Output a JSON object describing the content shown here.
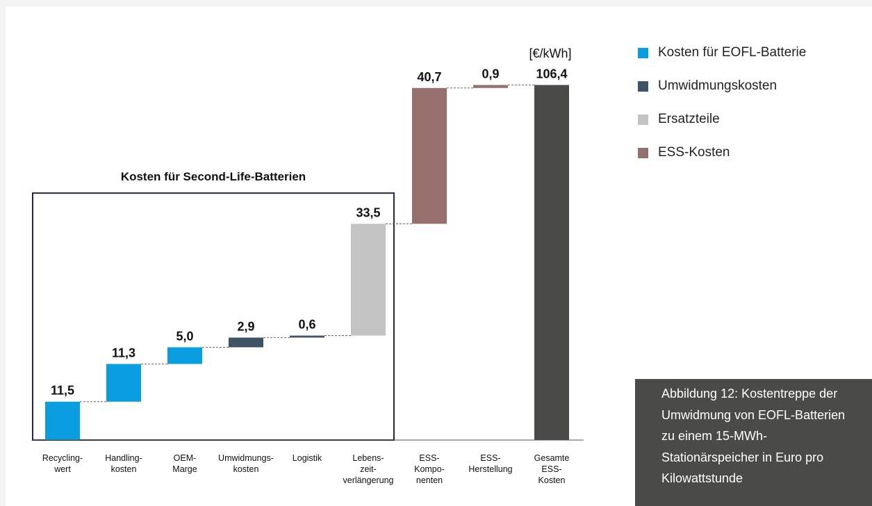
{
  "chart_data": {
    "type": "bar",
    "subtype": "waterfall",
    "unit_label": "[€/kWh]",
    "group_label": "Kosten für Second-Life-Batterien",
    "categories": [
      [
        "Recycling-",
        "wert"
      ],
      [
        "Handling-",
        "kosten"
      ],
      [
        "OEM-",
        "Marge"
      ],
      [
        "Umwidmungs-",
        "kosten"
      ],
      [
        "Logistik"
      ],
      [
        "Lebens-",
        "zeit-",
        "verlängerung"
      ],
      [
        "ESS-",
        "Kompo-",
        "nenten"
      ],
      [
        "ESS-",
        "Herstellung"
      ],
      [
        "Gesamte",
        "ESS-",
        "Kosten"
      ]
    ],
    "values": [
      11.5,
      11.3,
      5.0,
      2.9,
      0.6,
      33.5,
      40.7,
      0.9,
      106.4
    ],
    "value_labels": [
      "11,5",
      "11,3",
      "5,0",
      "2,9",
      "0,6",
      "33,5",
      "40,7",
      "0,9",
      "106,4"
    ],
    "bar_types": [
      "eofl",
      "eofl",
      "eofl",
      "umwidmung",
      "umwidmung",
      "ersatz",
      "ess",
      "ess",
      "total"
    ],
    "is_total": [
      false,
      false,
      false,
      false,
      false,
      false,
      false,
      false,
      true
    ],
    "ylim": [
      0,
      106.4
    ],
    "grid": false,
    "legend_position": "right"
  },
  "colors": {
    "eofl": "#0a9ee0",
    "umwidmung": "#3f5366",
    "ersatz": "#c3c3c3",
    "ess": "#95706c",
    "total": "#4a4a48",
    "box": "#1e2545"
  },
  "legend": [
    {
      "label": "Kosten für EOFL-Batterie",
      "color": "#0a9ee0"
    },
    {
      "label": "Umwidmungskosten",
      "color": "#3f5366"
    },
    {
      "label": "Ersatzteile",
      "color": "#c3c3c3"
    },
    {
      "label": "ESS-Kosten",
      "color": "#95706c"
    }
  ],
  "caption": "Abbildung 12: Kostentreppe der Umwidmung von EOFL-Batterien zu einem 15-MWh-Stationärspeicher in Euro pro Kilowattstunde"
}
